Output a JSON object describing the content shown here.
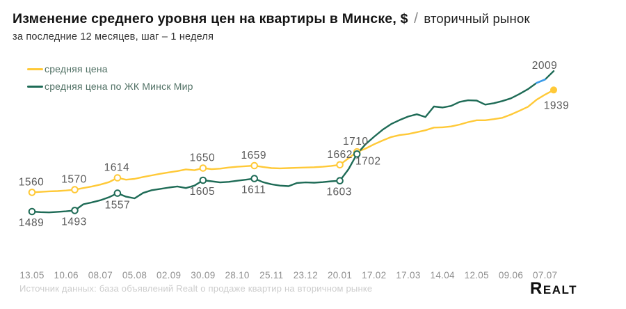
{
  "header": {
    "title_bold": "Изменение среднего уровня цен на квартиры в Минске, $",
    "title_sep": "/",
    "title_light": "вторичный рынок",
    "subtitle": "за последние 12 месяцев, шаг – 1 неделя"
  },
  "legend": [
    {
      "label": "средняя цена",
      "color": "#FFC937"
    },
    {
      "label": "средняя цена по ЖК Минск Мир",
      "color": "#1E6B56"
    }
  ],
  "chart_data": {
    "type": "line",
    "title": "Изменение среднего уровня цен на квартиры в Минске, $ / вторичный рынок",
    "subtitle": "за последние 12 месяцев, шаг – 1 неделя",
    "x_step": "1 week",
    "n_points": 62,
    "x_tick_labels": [
      "13.05",
      "10.06",
      "08.07",
      "05.08",
      "02.09",
      "30.09",
      "28.10",
      "25.11",
      "23.12",
      "20.01",
      "17.02",
      "17.03",
      "14.04",
      "12.05",
      "09.06",
      "07.07"
    ],
    "x_tick_step_weeks": 4,
    "ylim": [
      1450,
      2050
    ],
    "y_axis": "hidden",
    "grid": "off",
    "legend_position": "top-left",
    "label_color": "#595959",
    "axis_label_color": "#8f8f8f",
    "series": [
      {
        "name": "средняя цена",
        "color": "#FFC937",
        "values": [
          1560,
          1562,
          1564,
          1565,
          1567,
          1570,
          1576,
          1582,
          1589,
          1598,
          1614,
          1607,
          1610,
          1617,
          1623,
          1629,
          1634,
          1639,
          1645,
          1642,
          1650,
          1646,
          1648,
          1652,
          1655,
          1657,
          1659,
          1654,
          1650,
          1649,
          1650,
          1651,
          1652,
          1653,
          1655,
          1658,
          1662,
          1686,
          1710,
          1722,
          1738,
          1752,
          1765,
          1772,
          1776,
          1783,
          1790,
          1800,
          1801,
          1804,
          1811,
          1820,
          1827,
          1827,
          1831,
          1836,
          1848,
          1862,
          1877,
          1903,
          1922,
          1939
        ],
        "marker_weeks": [
          0,
          5,
          10,
          20,
          26,
          36,
          38
        ],
        "end_dot": true,
        "labeled_points": [
          {
            "week": 0,
            "text": "1560",
            "dx": -1,
            "dy": -10
          },
          {
            "week": 5,
            "text": "1570",
            "dx": -1,
            "dy": -10
          },
          {
            "week": 10,
            "text": "1614",
            "dx": -1,
            "dy": -10
          },
          {
            "week": 20,
            "text": "1650",
            "dx": -1,
            "dy": -10
          },
          {
            "week": 26,
            "text": "1659",
            "dx": -1,
            "dy": -10
          },
          {
            "week": 36,
            "text": "1662",
            "dx": 0,
            "dy": -10
          },
          {
            "week": 38,
            "text": "1710",
            "dx": -2,
            "dy": -10
          },
          {
            "week": 61,
            "text": "1939",
            "dx": 4,
            "dy": 27
          }
        ]
      },
      {
        "name": "средняя цена по ЖК Минск Мир",
        "color": "#1E6B56",
        "values": [
          1489,
          1487,
          1486,
          1488,
          1490,
          1493,
          1516,
          1523,
          1531,
          1542,
          1557,
          1544,
          1538,
          1558,
          1568,
          1573,
          1578,
          1582,
          1576,
          1585,
          1605,
          1601,
          1597,
          1599,
          1603,
          1607,
          1611,
          1598,
          1590,
          1585,
          1583,
          1595,
          1597,
          1596,
          1598,
          1601,
          1603,
          1645,
          1702,
          1738,
          1766,
          1792,
          1813,
          1828,
          1841,
          1849,
          1839,
          1878,
          1874,
          1880,
          1895,
          1901,
          1900,
          1885,
          1890,
          1898,
          1908,
          1924,
          1942,
          1965,
          1978,
          2009
        ],
        "marker_weeks": [
          0,
          5,
          10,
          20,
          26,
          36,
          38
        ],
        "end_dot": false,
        "highlight_segment": {
          "from_week": 59,
          "to_week": 60,
          "color": "#3A9BEA"
        },
        "labeled_points": [
          {
            "week": 0,
            "text": "1489",
            "dx": -1,
            "dy": 21
          },
          {
            "week": 5,
            "text": "1493",
            "dx": -1,
            "dy": 21
          },
          {
            "week": 10,
            "text": "1557",
            "dx": 0,
            "dy": 22
          },
          {
            "week": 20,
            "text": "1605",
            "dx": -1,
            "dy": 21
          },
          {
            "week": 26,
            "text": "1611",
            "dx": -1,
            "dy": 21
          },
          {
            "week": 36,
            "text": "1603",
            "dx": -1,
            "dy": 21
          },
          {
            "week": 38,
            "text": "1702",
            "dx": 16,
            "dy": 15
          },
          {
            "week": 61,
            "text": "2009",
            "dx": -13,
            "dy": -3
          }
        ]
      }
    ]
  },
  "footer": {
    "source": "Источник данных: база объявлений Realt о продаже квартир на вторичном рынке",
    "logo": "Realt"
  }
}
